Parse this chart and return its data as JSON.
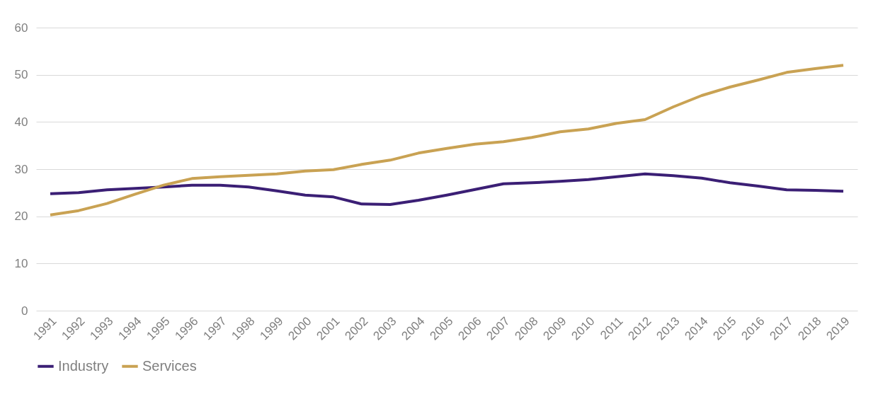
{
  "chart_data": {
    "type": "line",
    "categories": [
      "1991",
      "1992",
      "1993",
      "1994",
      "1995",
      "1996",
      "1997",
      "1998",
      "1999",
      "2000",
      "2001",
      "2002",
      "2003",
      "2004",
      "2005",
      "2006",
      "2007",
      "2008",
      "2009",
      "2010",
      "2011",
      "2012",
      "2013",
      "2014",
      "2015",
      "2016",
      "2017",
      "2018",
      "2019"
    ],
    "series": [
      {
        "name": "Industry",
        "color": "#3b1f75",
        "values": [
          24.8,
          25.0,
          25.6,
          25.9,
          26.2,
          26.6,
          26.6,
          26.2,
          25.4,
          24.5,
          24.1,
          22.6,
          22.5,
          23.4,
          24.5,
          25.7,
          26.9,
          27.1,
          27.4,
          27.8,
          28.4,
          29.0,
          28.6,
          28.1,
          27.1,
          26.4,
          25.6,
          25.5,
          25.3
        ]
      },
      {
        "name": "Services",
        "color": "#c9a253",
        "values": [
          20.3,
          21.2,
          22.7,
          24.7,
          26.6,
          28.0,
          28.4,
          28.7,
          29.0,
          29.6,
          29.9,
          31.0,
          31.9,
          33.4,
          34.4,
          35.3,
          35.8,
          36.7,
          37.9,
          38.5,
          39.7,
          40.5,
          43.2,
          45.6,
          47.4,
          48.9,
          50.5,
          51.3,
          52.0
        ]
      }
    ],
    "ylim": [
      0,
      60
    ],
    "yticks": [
      0,
      10,
      20,
      30,
      40,
      50,
      60
    ],
    "grid": "y",
    "legend": "bottom",
    "marker": "none",
    "line_style": "solid"
  }
}
